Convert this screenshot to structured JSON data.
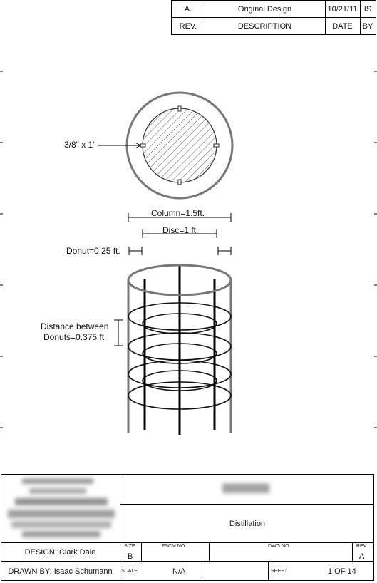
{
  "revision_table": {
    "row": {
      "rev": "A.",
      "description": "Original Design",
      "date": "10/21/11",
      "by": "IS"
    },
    "header": {
      "rev": "REV.",
      "description": "DESCRIPTION",
      "date": "DATE",
      "by": "BY"
    }
  },
  "drawing": {
    "top_view_callout": "3/8\" x 1\"",
    "column_dim": "Column=1.5ft.",
    "disc_dim": "Disc=1 ft.",
    "donut_dim": "Donut=0.25 ft.",
    "distance_line1": "Distance between",
    "distance_line2": "Donuts=0.375 ft."
  },
  "title_block": {
    "title": "Distillation",
    "design_by": "DESIGN: Clark Dale",
    "drawn_by": "DRAWN BY: Isaac Schumann",
    "size_label": "SIZE",
    "size_value": "B",
    "fscm_label": "FSCM NO",
    "dwg_label": "DWG NO",
    "rev_label": "REV",
    "rev_value": "A",
    "scale_label": "SCALE",
    "scale_value": "N/A",
    "sheet_label": "SHEET",
    "sheet_value": "1 OF 14"
  },
  "colors": {
    "line": "#111111",
    "shell": "#777777",
    "hatch": "#555555",
    "border": "#000000"
  }
}
